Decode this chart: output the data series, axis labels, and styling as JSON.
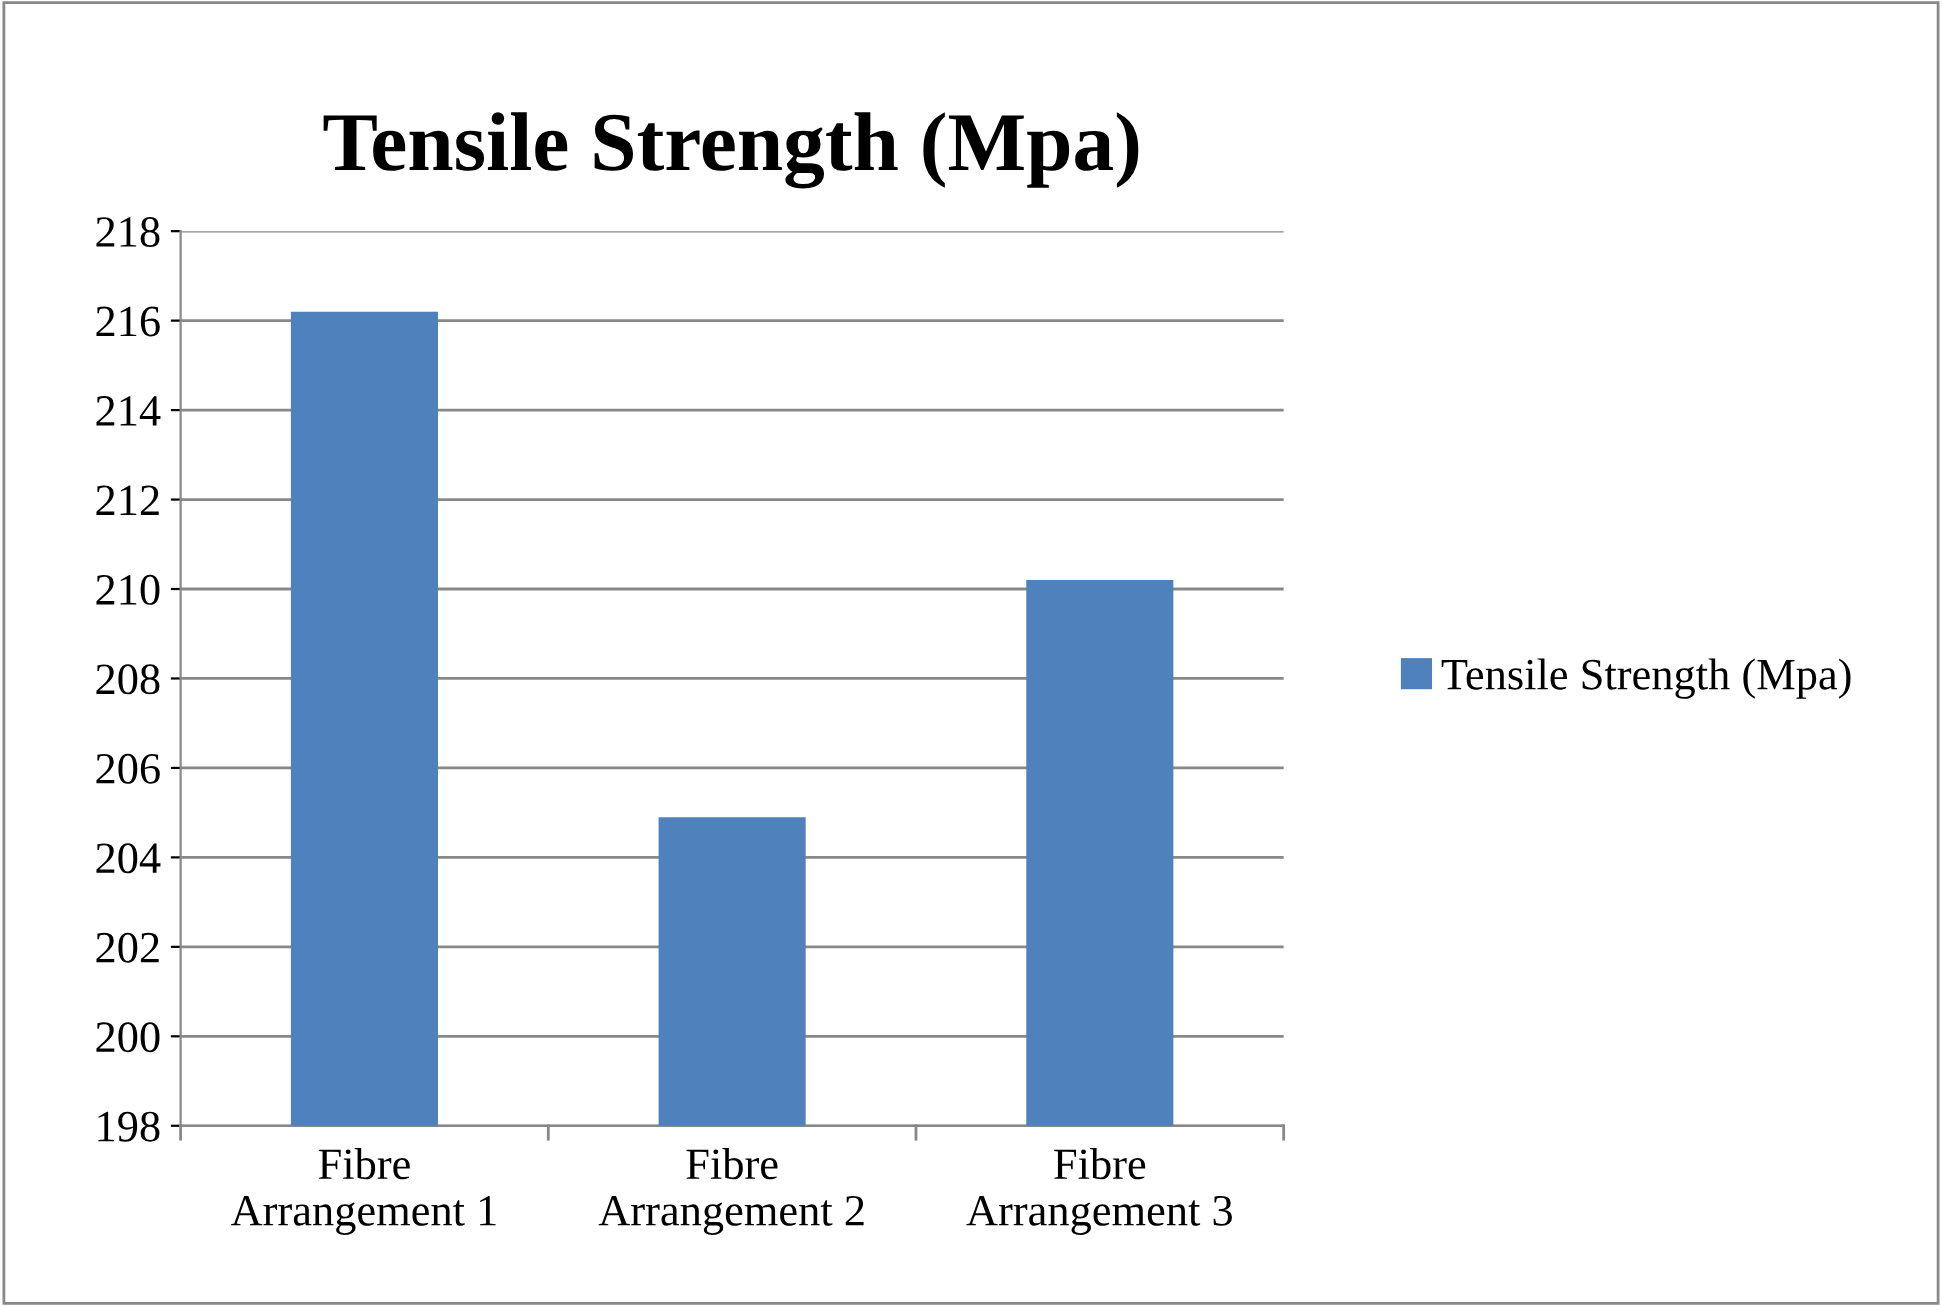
{
  "chart_data": {
    "type": "bar",
    "title": "Tensile Strength (Mpa)",
    "categories": [
      "Fibre\nArrangement 1",
      "Fibre\nArrangement 2",
      "Fibre\nArrangement 3"
    ],
    "series": [
      {
        "name": "Tensile Strength (Mpa)",
        "color": "#4f81bd",
        "values": [
          216.2,
          204.9,
          210.2
        ]
      }
    ],
    "ylim": [
      198,
      218
    ],
    "yticks": [
      198,
      200,
      202,
      204,
      206,
      208,
      210,
      212,
      214,
      216,
      218
    ],
    "grid": "y",
    "legend": "right"
  }
}
